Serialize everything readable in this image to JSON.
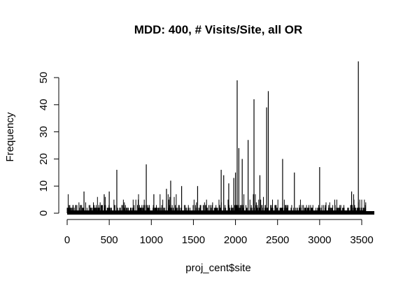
{
  "chart_data": {
    "type": "bar",
    "title": "MDD: 400, # Visits/Site, all OR",
    "xlabel": "proj_cent$site",
    "ylabel": "Frequency",
    "xlim": [
      0,
      3550
    ],
    "ylim": [
      0,
      56
    ],
    "xticks": [
      0,
      500,
      1000,
      1500,
      2000,
      2500,
      3000,
      3500
    ],
    "xtick_labels": [
      "0",
      "500",
      "1000",
      "1500",
      "2000",
      "2500",
      "3000",
      "3500"
    ],
    "yticks": [
      0,
      10,
      20,
      30,
      40,
      50
    ],
    "ytick_labels": [
      "0",
      "10",
      "20",
      "30",
      "40",
      "50"
    ],
    "grid": false,
    "legend": "none",
    "bar_color": "#000000",
    "notable_spikes": [
      {
        "x": 200,
        "y": 8
      },
      {
        "x": 440,
        "y": 7
      },
      {
        "x": 500,
        "y": 8
      },
      {
        "x": 590,
        "y": 16
      },
      {
        "x": 940,
        "y": 18
      },
      {
        "x": 1030,
        "y": 7
      },
      {
        "x": 1180,
        "y": 9
      },
      {
        "x": 1230,
        "y": 12
      },
      {
        "x": 1360,
        "y": 10
      },
      {
        "x": 1550,
        "y": 10
      },
      {
        "x": 1830,
        "y": 16
      },
      {
        "x": 1860,
        "y": 14
      },
      {
        "x": 1920,
        "y": 11
      },
      {
        "x": 1980,
        "y": 13
      },
      {
        "x": 2000,
        "y": 15
      },
      {
        "x": 2020,
        "y": 49
      },
      {
        "x": 2040,
        "y": 24
      },
      {
        "x": 2080,
        "y": 20
      },
      {
        "x": 2150,
        "y": 27
      },
      {
        "x": 2220,
        "y": 42
      },
      {
        "x": 2290,
        "y": 14
      },
      {
        "x": 2370,
        "y": 39
      },
      {
        "x": 2390,
        "y": 45
      },
      {
        "x": 2560,
        "y": 20
      },
      {
        "x": 2700,
        "y": 15
      },
      {
        "x": 3000,
        "y": 17
      },
      {
        "x": 3380,
        "y": 8
      },
      {
        "x": 3460,
        "y": 56
      }
    ]
  }
}
